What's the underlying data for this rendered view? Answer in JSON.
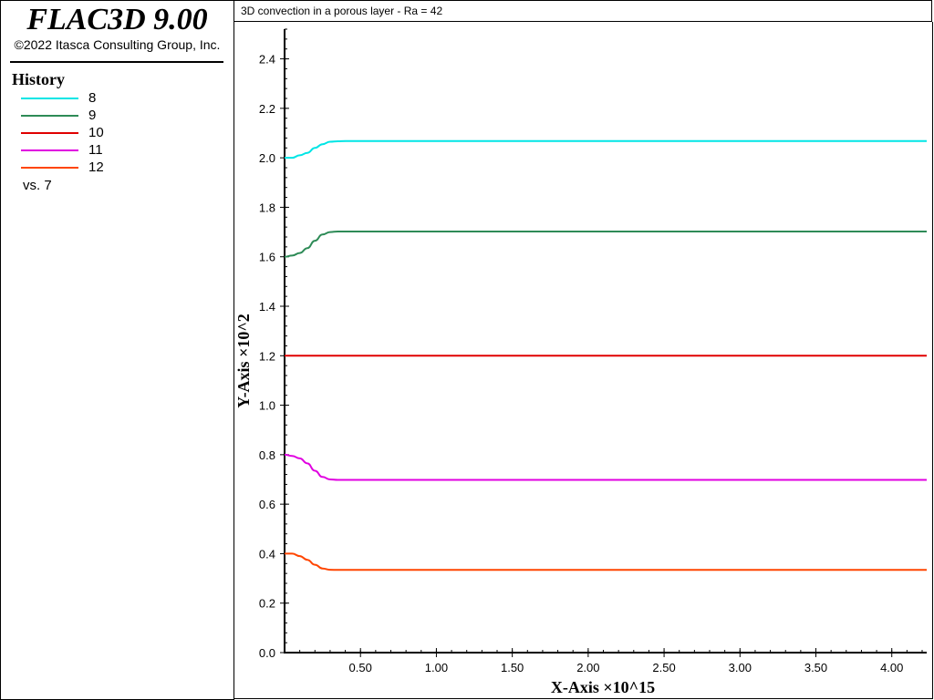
{
  "legend_panel": {
    "app_title": "FLAC3D 9.00",
    "copyright": "©2022 Itasca Consulting Group, Inc.",
    "heading": "History",
    "items": [
      {
        "label": "8",
        "color": "#00e5e5"
      },
      {
        "label": "9",
        "color": "#2e8b57"
      },
      {
        "label": "10",
        "color": "#e00000"
      },
      {
        "label": "11",
        "color": "#e000e0"
      },
      {
        "label": "12",
        "color": "#ff4500"
      }
    ],
    "vs_label": "vs. 7"
  },
  "chart_data": {
    "type": "line",
    "title": "3D convection in a porous layer - Ra = 42",
    "xlabel": "X-Axis ×10^15",
    "ylabel": "Y-Axis ×10^2",
    "xlim": [
      0.0,
      4.23
    ],
    "ylim": [
      0.0,
      2.52
    ],
    "xticks": [
      {
        "value": 0.5,
        "label": "0.50"
      },
      {
        "value": 1.0,
        "label": "1.00"
      },
      {
        "value": 1.5,
        "label": "1.50"
      },
      {
        "value": 2.0,
        "label": "2.00"
      },
      {
        "value": 2.5,
        "label": "2.50"
      },
      {
        "value": 3.0,
        "label": "3.00"
      },
      {
        "value": 3.5,
        "label": "3.50"
      },
      {
        "value": 4.0,
        "label": "4.00"
      }
    ],
    "yticks": [
      {
        "value": 0.0,
        "label": "0.0"
      },
      {
        "value": 0.2,
        "label": "0.2"
      },
      {
        "value": 0.4,
        "label": "0.4"
      },
      {
        "value": 0.6,
        "label": "0.6"
      },
      {
        "value": 0.8,
        "label": "0.8"
      },
      {
        "value": 1.0,
        "label": "1.0"
      },
      {
        "value": 1.2,
        "label": "1.2"
      },
      {
        "value": 1.4,
        "label": "1.4"
      },
      {
        "value": 1.6,
        "label": "1.6"
      },
      {
        "value": 1.8,
        "label": "1.8"
      },
      {
        "value": 2.0,
        "label": "2.0"
      },
      {
        "value": 2.2,
        "label": "2.2"
      },
      {
        "value": 2.4,
        "label": "2.4"
      }
    ],
    "grid": false,
    "legend_position": "left panel",
    "series": [
      {
        "name": "8",
        "color": "#00e5e5",
        "x": [
          0.0,
          0.05,
          0.1,
          0.15,
          0.2,
          0.25,
          0.3,
          0.35,
          0.4,
          4.23
        ],
        "y": [
          2.0,
          2.0,
          2.01,
          2.02,
          2.04,
          2.055,
          2.065,
          2.067,
          2.068,
          2.068
        ]
      },
      {
        "name": "9",
        "color": "#2e8b57",
        "x": [
          0.0,
          0.05,
          0.1,
          0.15,
          0.2,
          0.25,
          0.3,
          0.35,
          0.4,
          4.23
        ],
        "y": [
          1.6,
          1.605,
          1.615,
          1.635,
          1.665,
          1.69,
          1.7,
          1.702,
          1.702,
          1.702
        ]
      },
      {
        "name": "10",
        "color": "#e00000",
        "x": [
          0.0,
          4.23
        ],
        "y": [
          1.2,
          1.2
        ]
      },
      {
        "name": "11",
        "color": "#e000e0",
        "x": [
          0.0,
          0.05,
          0.1,
          0.15,
          0.2,
          0.25,
          0.3,
          0.35,
          0.4,
          4.23
        ],
        "y": [
          0.8,
          0.795,
          0.785,
          0.765,
          0.735,
          0.71,
          0.7,
          0.698,
          0.698,
          0.698
        ]
      },
      {
        "name": "12",
        "color": "#ff4500",
        "x": [
          0.0,
          0.05,
          0.1,
          0.15,
          0.2,
          0.25,
          0.3,
          0.35,
          0.4,
          4.23
        ],
        "y": [
          0.4,
          0.4,
          0.39,
          0.375,
          0.355,
          0.34,
          0.335,
          0.334,
          0.334,
          0.334
        ]
      }
    ]
  }
}
